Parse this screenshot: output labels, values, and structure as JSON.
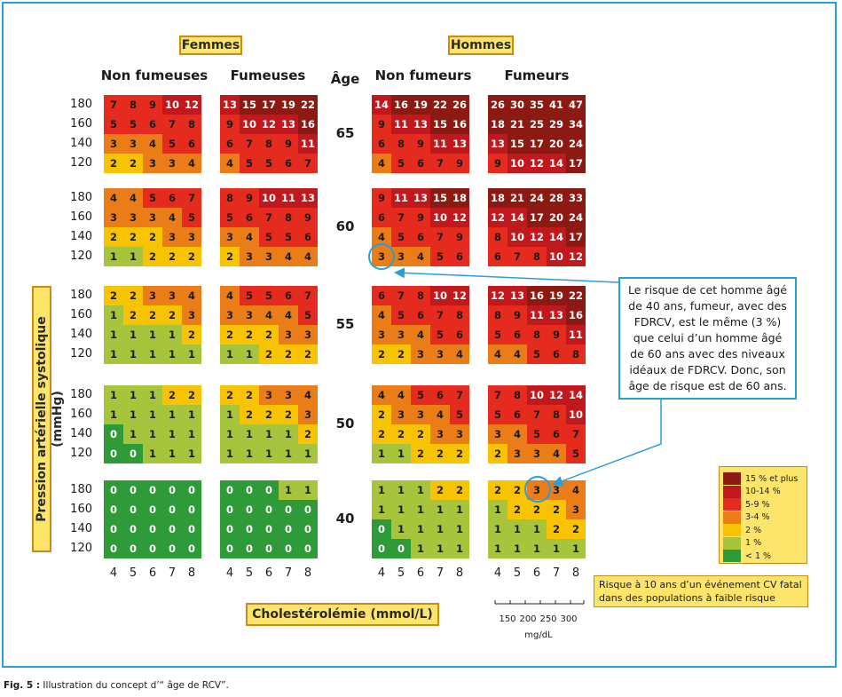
{
  "figure": {
    "sex_labels": [
      "Femmes",
      "Hommes"
    ],
    "group_headers": [
      "Non fumeuses",
      "Fumeuses",
      "Non fumeurs",
      "Fumeurs"
    ],
    "age_header": "Âge",
    "ages": [
      "65",
      "60",
      "55",
      "50",
      "40"
    ],
    "bp_ticks": [
      "180",
      "160",
      "140",
      "120"
    ],
    "chol_ticks": [
      "4",
      "5",
      "6",
      "7",
      "8"
    ],
    "ylabel": "Pression artérielle systolique (mmHg)",
    "xlabel": "Cholestérolémie (mmol/L)",
    "mgdl_ticks": [
      "150",
      "200",
      "250",
      "300"
    ],
    "mgdl_unit": "mg/dL",
    "callout": "Le risque de cet homme âgé de 40 ans, fumeur, avec des FDRCV, est le même (3 %) que celui d’un homme âgé de 60 ans avec des niveaux idéaux de FDRCV. Donc, son âge de risque est de 60 ans.",
    "legend_caption": "Risque à 10 ans d’un événement CV fatal dans des populations à faible risque",
    "caption_label": "Fig. 5 :",
    "caption_text": " Illustration du concept d’“ âge de RCV”."
  },
  "chart_data": {
    "type": "heatmap",
    "title": "",
    "xlabel": "Cholestérolémie (mmol/L)",
    "ylabel": "Pression artérielle systolique (mmHg)",
    "x": [
      4,
      5,
      6,
      7,
      8
    ],
    "y": [
      180,
      160,
      140,
      120
    ],
    "ages": [
      65,
      60,
      55,
      50,
      40
    ],
    "groups": [
      "Femmes Non fumeuses",
      "Femmes Fumeuses",
      "Hommes Non fumeurs",
      "Hommes Fumeurs"
    ],
    "values": {
      "65": [
        [
          [
            7,
            8,
            9,
            10,
            12
          ],
          [
            5,
            5,
            6,
            7,
            8
          ],
          [
            3,
            3,
            4,
            5,
            6
          ],
          [
            2,
            2,
            3,
            3,
            4
          ]
        ],
        [
          [
            13,
            15,
            17,
            19,
            22
          ],
          [
            9,
            10,
            12,
            13,
            16
          ],
          [
            6,
            7,
            8,
            9,
            11
          ],
          [
            4,
            5,
            5,
            6,
            7
          ]
        ],
        [
          [
            14,
            16,
            19,
            22,
            26
          ],
          [
            9,
            11,
            13,
            15,
            16
          ],
          [
            6,
            8,
            9,
            11,
            13
          ],
          [
            4,
            5,
            6,
            7,
            9
          ]
        ],
        [
          [
            26,
            30,
            35,
            41,
            47
          ],
          [
            18,
            21,
            25,
            29,
            34
          ],
          [
            13,
            15,
            17,
            20,
            24
          ],
          [
            9,
            10,
            12,
            14,
            17
          ]
        ]
      ],
      "60": [
        [
          [
            4,
            4,
            5,
            6,
            7
          ],
          [
            3,
            3,
            3,
            4,
            5
          ],
          [
            2,
            2,
            2,
            3,
            3
          ],
          [
            1,
            1,
            2,
            2,
            2
          ]
        ],
        [
          [
            8,
            9,
            10,
            11,
            13
          ],
          [
            5,
            6,
            7,
            8,
            9
          ],
          [
            3,
            4,
            5,
            5,
            6
          ],
          [
            2,
            3,
            3,
            4,
            4
          ]
        ],
        [
          [
            9,
            11,
            13,
            15,
            18
          ],
          [
            6,
            7,
            9,
            10,
            12
          ],
          [
            4,
            5,
            6,
            7,
            9
          ],
          [
            3,
            3,
            4,
            5,
            6
          ]
        ],
        [
          [
            18,
            21,
            24,
            28,
            33
          ],
          [
            12,
            14,
            17,
            20,
            24
          ],
          [
            8,
            10,
            12,
            14,
            17
          ],
          [
            6,
            7,
            8,
            10,
            12
          ]
        ]
      ],
      "55": [
        [
          [
            2,
            2,
            3,
            3,
            4
          ],
          [
            1,
            2,
            2,
            2,
            3
          ],
          [
            1,
            1,
            1,
            1,
            2
          ],
          [
            1,
            1,
            1,
            1,
            1
          ]
        ],
        [
          [
            4,
            5,
            5,
            6,
            7
          ],
          [
            3,
            3,
            4,
            4,
            5
          ],
          [
            2,
            2,
            2,
            3,
            3
          ],
          [
            1,
            1,
            2,
            2,
            2
          ]
        ],
        [
          [
            6,
            7,
            8,
            10,
            12
          ],
          [
            4,
            5,
            6,
            7,
            8
          ],
          [
            3,
            3,
            4,
            5,
            6
          ],
          [
            2,
            2,
            3,
            3,
            4
          ]
        ],
        [
          [
            12,
            13,
            16,
            19,
            22
          ],
          [
            8,
            9,
            11,
            13,
            16
          ],
          [
            5,
            6,
            8,
            9,
            11
          ],
          [
            4,
            4,
            5,
            6,
            8
          ]
        ]
      ],
      "50": [
        [
          [
            1,
            1,
            1,
            2,
            2
          ],
          [
            1,
            1,
            1,
            1,
            1
          ],
          [
            0,
            1,
            1,
            1,
            1
          ],
          [
            0,
            0,
            1,
            1,
            1
          ]
        ],
        [
          [
            2,
            2,
            3,
            3,
            4
          ],
          [
            1,
            2,
            2,
            2,
            3
          ],
          [
            1,
            1,
            1,
            1,
            2
          ],
          [
            1,
            1,
            1,
            1,
            1
          ]
        ],
        [
          [
            4,
            4,
            5,
            6,
            7
          ],
          [
            2,
            3,
            3,
            4,
            5
          ],
          [
            2,
            2,
            2,
            3,
            3
          ],
          [
            1,
            1,
            2,
            2,
            2
          ]
        ],
        [
          [
            7,
            8,
            10,
            12,
            14
          ],
          [
            5,
            6,
            7,
            8,
            10
          ],
          [
            3,
            4,
            5,
            6,
            7
          ],
          [
            2,
            3,
            3,
            4,
            5
          ]
        ]
      ],
      "40": [
        [
          [
            0,
            0,
            0,
            0,
            0
          ],
          [
            0,
            0,
            0,
            0,
            0
          ],
          [
            0,
            0,
            0,
            0,
            0
          ],
          [
            0,
            0,
            0,
            0,
            0
          ]
        ],
        [
          [
            0,
            0,
            0,
            1,
            1
          ],
          [
            0,
            0,
            0,
            0,
            0
          ],
          [
            0,
            0,
            0,
            0,
            0
          ],
          [
            0,
            0,
            0,
            0,
            0
          ]
        ],
        [
          [
            1,
            1,
            1,
            2,
            2
          ],
          [
            1,
            1,
            1,
            1,
            1
          ],
          [
            0,
            1,
            1,
            1,
            1
          ],
          [
            0,
            0,
            1,
            1,
            1
          ]
        ],
        [
          [
            2,
            2,
            3,
            3,
            4
          ],
          [
            1,
            2,
            2,
            2,
            3
          ],
          [
            1,
            1,
            1,
            2,
            2
          ],
          [
            1,
            1,
            1,
            1,
            1
          ]
        ]
      ]
    },
    "legend": [
      {
        "label": "15 % et plus",
        "color": "#8c1a12"
      },
      {
        "label": "10-14 %",
        "color": "#c0181c"
      },
      {
        "label": "5-9 %",
        "color": "#e42b1e"
      },
      {
        "label": "3-4 %",
        "color": "#ea7d18"
      },
      {
        "label": "2 %",
        "color": "#f8c300"
      },
      {
        "label": "1 %",
        "color": "#a6c43c"
      },
      {
        "label": "< 1 %",
        "color": "#2e9a38"
      }
    ]
  }
}
